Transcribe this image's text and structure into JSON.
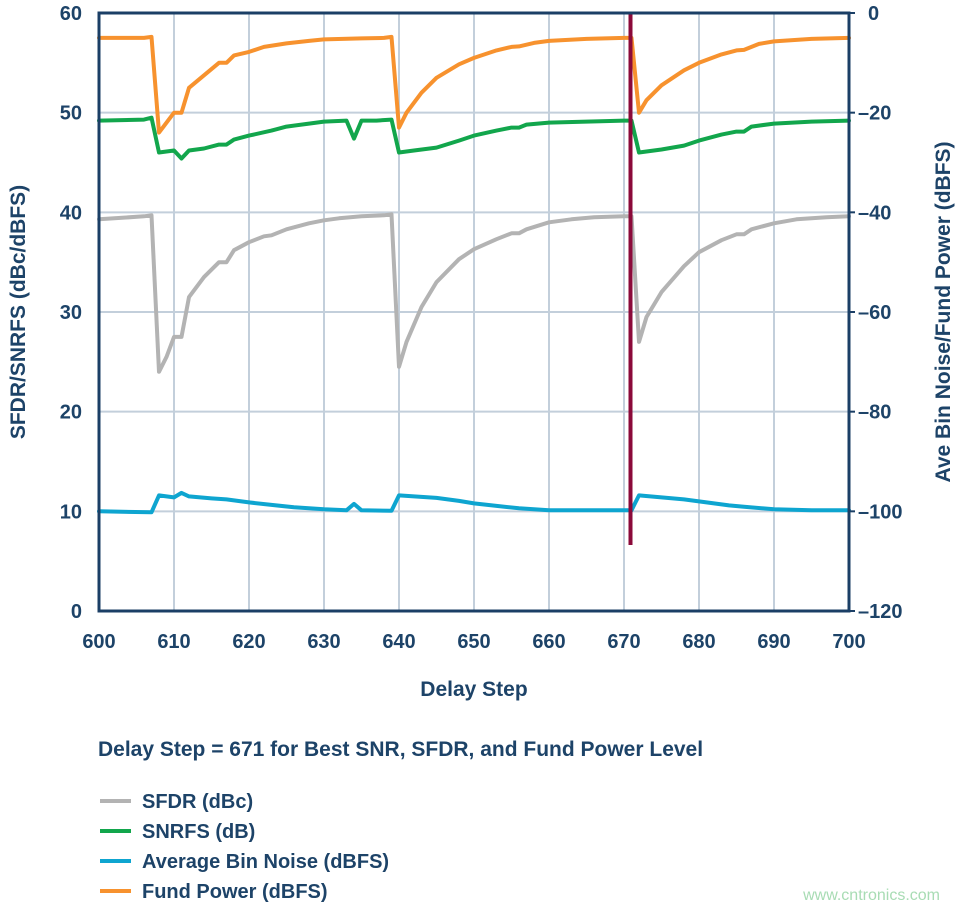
{
  "chart_data": {
    "type": "line",
    "title": "",
    "subtitle": "Delay Step = 671 for Best SNR, SFDR, and Fund Power Level",
    "xlabel": "Delay Step",
    "ylabel_left": "SFDR/SNRFS (dBc/dBFS)",
    "ylabel_right": "Ave Bin Noise/Fund Power (dBFS)",
    "xlim": [
      600,
      700
    ],
    "ylim_left": [
      0,
      60
    ],
    "ylim_right": [
      -120,
      0
    ],
    "x_ticks": [
      "600",
      "610",
      "620",
      "630",
      "640",
      "650",
      "660",
      "670",
      "680",
      "690",
      "700"
    ],
    "y_ticks_left": [
      "0",
      "10",
      "20",
      "30",
      "40",
      "50",
      "60"
    ],
    "y_ticks_right": [
      "–120",
      "–100",
      "–80",
      "–60",
      "–40",
      "–20",
      "0"
    ],
    "grid": true,
    "legend_placement": "bottom-left",
    "marker_line": {
      "x": 671,
      "color": "#8b0a3a"
    },
    "series": [
      {
        "name": "SFDR (dBc)",
        "axis": "left",
        "color": "#b3b3b3",
        "x": [
          600,
          606,
          607,
          608,
          609,
          610,
          611,
          612,
          614,
          616,
          617,
          618,
          620,
          622,
          623,
          625,
          628,
          630,
          632,
          635,
          638,
          639,
          640,
          641,
          643,
          645,
          648,
          650,
          653,
          655,
          656,
          657,
          660,
          663,
          666,
          670,
          671,
          672,
          673,
          675,
          678,
          680,
          683,
          685,
          686,
          687,
          690,
          693,
          697,
          700
        ],
        "y": [
          39.3,
          39.6,
          39.7,
          24,
          25.5,
          27.5,
          27.5,
          31.5,
          33.5,
          35,
          35,
          36.2,
          37,
          37.6,
          37.7,
          38.3,
          38.9,
          39.2,
          39.4,
          39.6,
          39.7,
          39.8,
          24.5,
          27,
          30.5,
          33,
          35.3,
          36.3,
          37.3,
          37.9,
          37.9,
          38.3,
          39,
          39.3,
          39.5,
          39.6,
          39.6,
          27,
          29.5,
          32,
          34.6,
          36,
          37.2,
          37.8,
          37.8,
          38.3,
          38.9,
          39.3,
          39.5,
          39.6
        ]
      },
      {
        "name": "SNRFS (dB)",
        "axis": "left",
        "color": "#12a64c",
        "x": [
          600,
          606,
          607,
          608,
          610,
          611,
          612,
          614,
          616,
          617,
          618,
          620,
          623,
          625,
          628,
          630,
          633,
          634,
          635,
          637,
          639,
          640,
          642,
          645,
          648,
          650,
          653,
          655,
          656,
          657,
          660,
          665,
          670,
          671,
          672,
          675,
          678,
          680,
          683,
          685,
          686,
          687,
          690,
          695,
          700
        ],
        "y": [
          49.2,
          49.3,
          49.5,
          46,
          46.2,
          45.4,
          46.2,
          46.4,
          46.8,
          46.8,
          47.3,
          47.7,
          48.2,
          48.6,
          48.9,
          49.1,
          49.2,
          47.4,
          49.2,
          49.2,
          49.3,
          46,
          46.2,
          46.5,
          47.2,
          47.7,
          48.2,
          48.5,
          48.5,
          48.8,
          49,
          49.1,
          49.2,
          49.2,
          46,
          46.3,
          46.7,
          47.2,
          47.8,
          48.1,
          48.1,
          48.6,
          48.9,
          49.1,
          49.2
        ]
      },
      {
        "name": "Average Bin Noise (dBFS)",
        "axis": "right",
        "color": "#0ea5d0",
        "x": [
          600,
          607,
          608,
          610,
          611,
          612,
          615,
          617,
          620,
          623,
          626,
          630,
          633,
          634,
          635,
          639,
          640,
          642,
          645,
          648,
          650,
          653,
          656,
          660,
          670,
          671,
          672,
          675,
          678,
          681,
          684,
          686,
          690,
          695,
          700
        ],
        "y": [
          -100,
          -100.2,
          -96.8,
          -97.2,
          -96.3,
          -97,
          -97.4,
          -97.6,
          -98.2,
          -98.7,
          -99.2,
          -99.6,
          -99.8,
          -98.5,
          -99.8,
          -99.9,
          -96.8,
          -97,
          -97.3,
          -97.9,
          -98.4,
          -98.9,
          -99.4,
          -99.8,
          -99.8,
          -99.8,
          -96.8,
          -97.2,
          -97.6,
          -98.2,
          -98.8,
          -99.1,
          -99.6,
          -99.8,
          -99.8
        ]
      },
      {
        "name": "Fund Power (dBFS)",
        "axis": "right",
        "color": "#f7922e",
        "x": [
          600,
          606,
          607,
          608,
          610,
          611,
          612,
          614,
          616,
          617,
          618,
          620,
          622,
          625,
          628,
          630,
          635,
          638,
          639,
          640,
          641,
          643,
          645,
          648,
          650,
          653,
          655,
          656,
          658,
          660,
          665,
          670,
          671,
          672,
          673,
          675,
          678,
          680,
          683,
          685,
          686,
          688,
          690,
          695,
          700
        ],
        "y": [
          -5,
          -5,
          -4.8,
          -24,
          -20,
          -20,
          -15,
          -12.5,
          -10,
          -10,
          -8.5,
          -7.8,
          -6.8,
          -6.1,
          -5.6,
          -5.3,
          -5.1,
          -5,
          -4.8,
          -23,
          -20,
          -16,
          -13,
          -10.3,
          -9,
          -7.5,
          -6.8,
          -6.7,
          -6,
          -5.6,
          -5.2,
          -5,
          -5,
          -20,
          -17.5,
          -14.5,
          -11.5,
          -10,
          -8.3,
          -7.5,
          -7.4,
          -6.2,
          -5.7,
          -5.2,
          -5
        ]
      }
    ]
  },
  "watermark": "www.cntronics.com",
  "colors": {
    "axis_text": "#1d4368",
    "frame": "#1b3f66",
    "grid": "#c3cfdb"
  }
}
